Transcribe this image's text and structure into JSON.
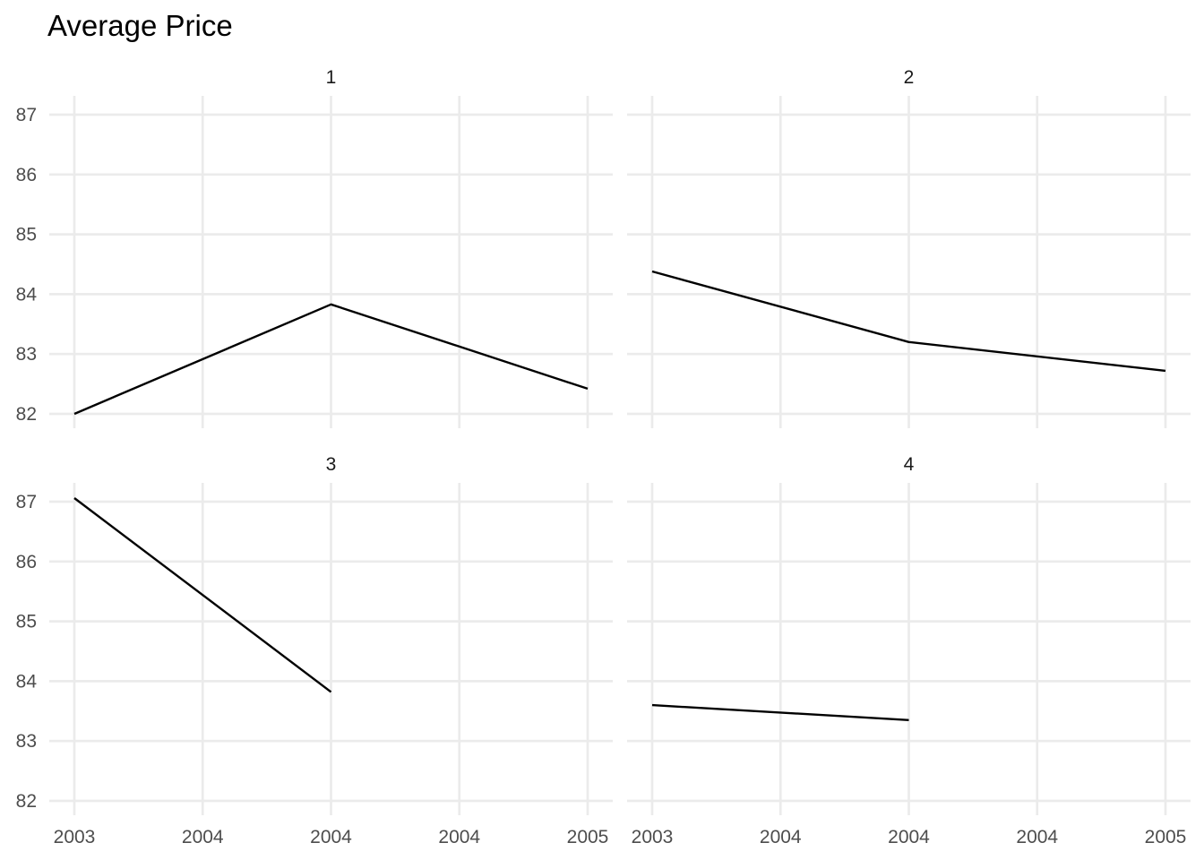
{
  "chart_data": {
    "type": "line",
    "title": "Average Price",
    "xlabel": "",
    "ylabel": "",
    "x": [
      0,
      0.5,
      1,
      1.5,
      2
    ],
    "xtick_labels": [
      "2003",
      "2004",
      "2004",
      "2004",
      "2005"
    ],
    "yticks": [
      82,
      83,
      84,
      85,
      86,
      87
    ],
    "ylim": [
      81.75,
      87.3
    ],
    "grid": true,
    "legend": "none",
    "line_color": "#000000",
    "panels": [
      {
        "label": "1",
        "points": [
          [
            0,
            82.0
          ],
          [
            1,
            83.83
          ],
          [
            2,
            82.42
          ]
        ]
      },
      {
        "label": "2",
        "points": [
          [
            0,
            84.38
          ],
          [
            1,
            83.2
          ],
          [
            2,
            82.72
          ]
        ]
      },
      {
        "label": "3",
        "points": [
          [
            0,
            87.06
          ],
          [
            1,
            83.82
          ]
        ]
      },
      {
        "label": "4",
        "points": [
          [
            0,
            83.6
          ],
          [
            1,
            83.35
          ]
        ]
      }
    ]
  }
}
